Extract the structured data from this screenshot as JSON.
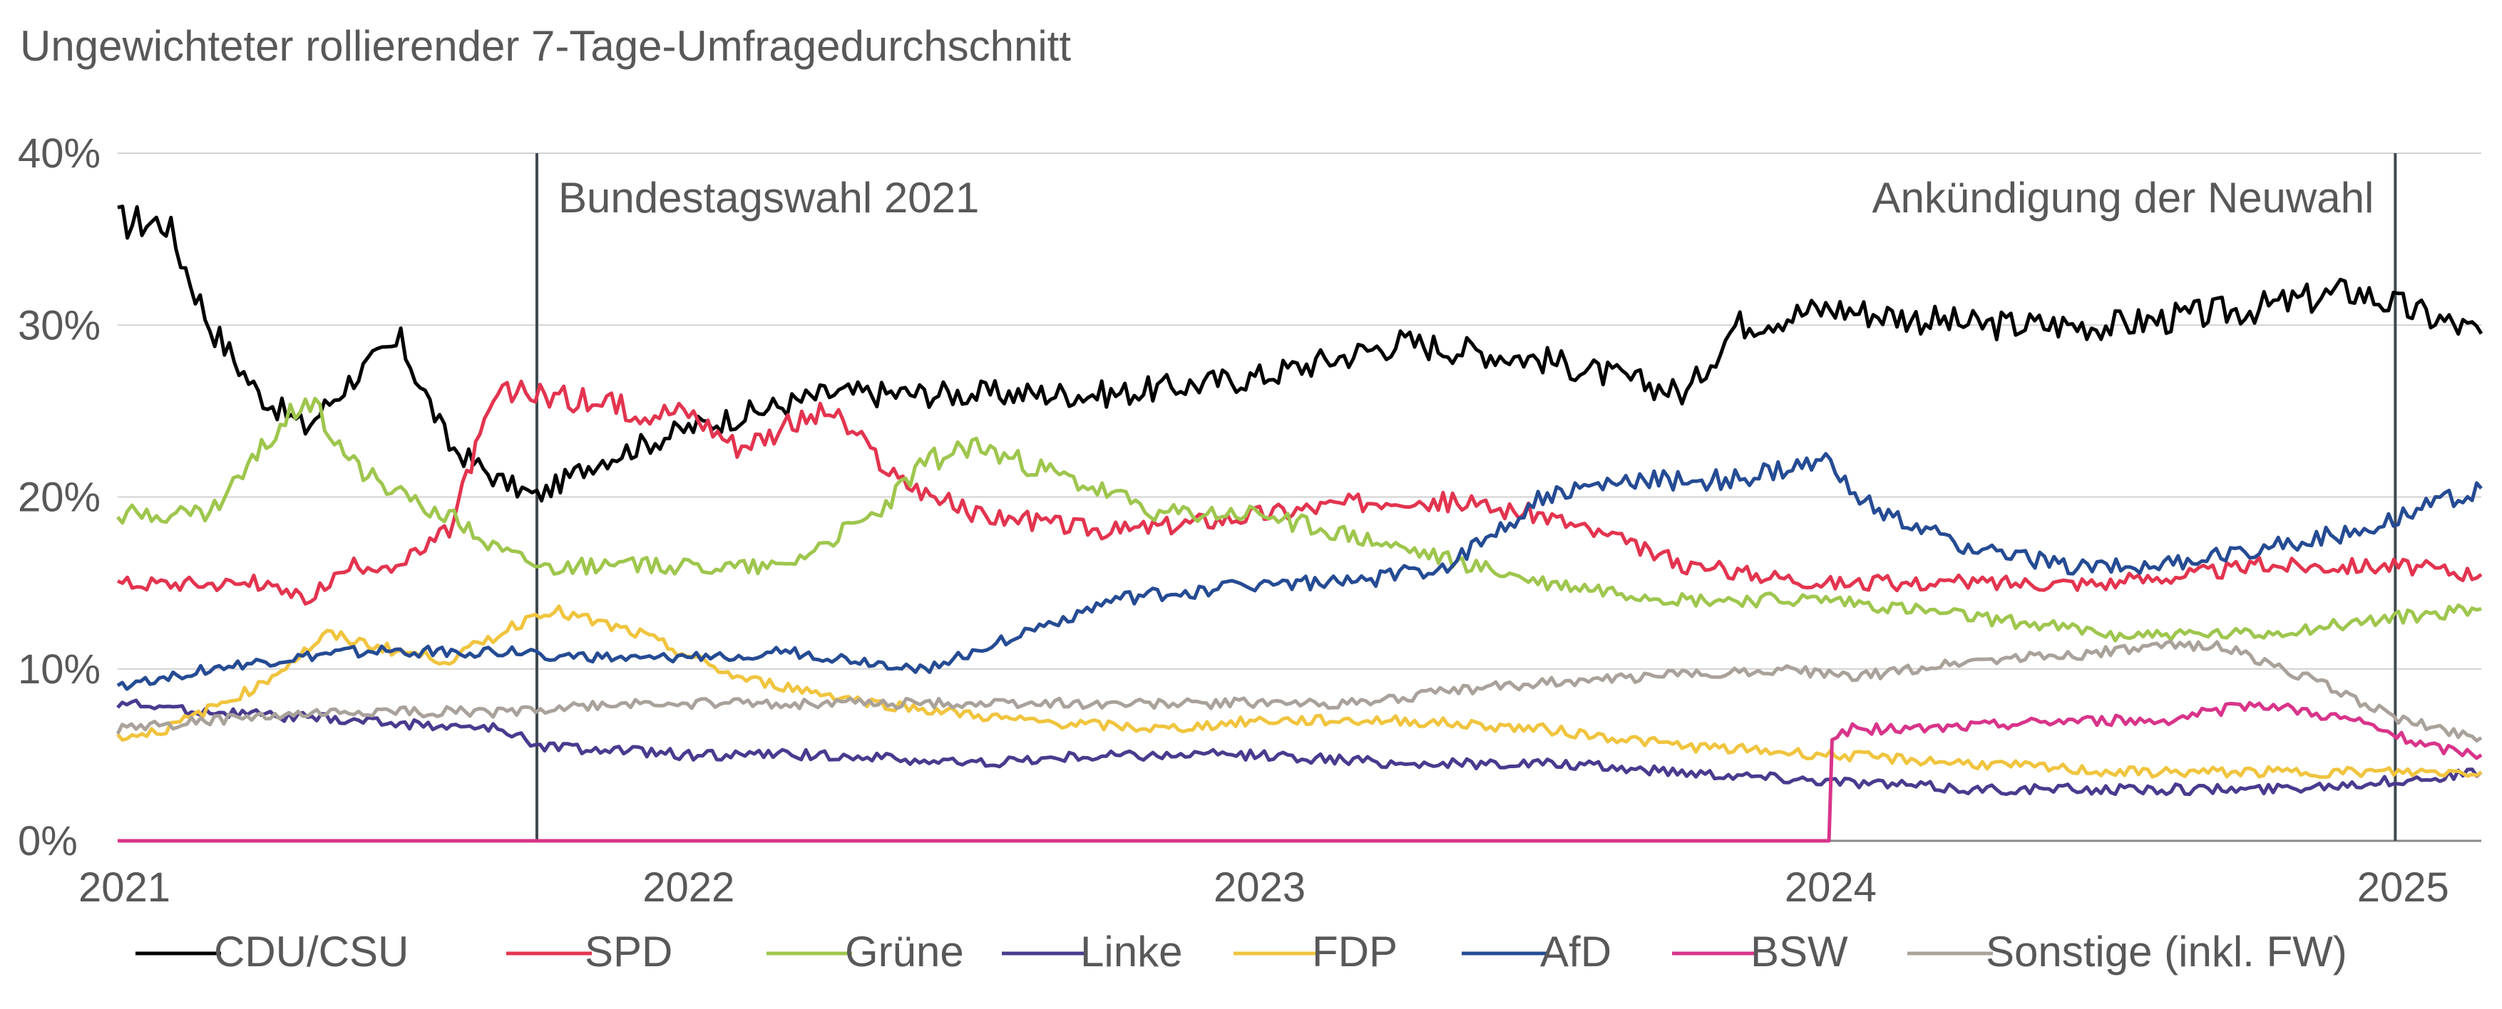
{
  "chart_data": {
    "type": "line",
    "title": "",
    "subtitle": "Ungewichteter rollierender 7-Tage-Umfragedurchschnitt",
    "xlabel": "",
    "ylabel": "",
    "x_ticks": [
      "2021",
      "2022",
      "2023",
      "2024",
      "2025"
    ],
    "y_ticks": [
      "0%",
      "10%",
      "20%",
      "30%",
      "40%"
    ],
    "xlim": [
      "2021-01-01",
      "2025-02-20"
    ],
    "ylim": [
      0,
      40
    ],
    "grid": "horizontal",
    "legend_position": "bottom",
    "annotations": [
      {
        "label": "Bundestagswahl 2021",
        "x": "2021-09-26"
      },
      {
        "label": "Ankündigung der Neuwahl",
        "x": "2024-12-27"
      }
    ],
    "series": [
      {
        "name": "CDU/CSU",
        "color": "#000000",
        "x": [
          "2021-01-01",
          "2021-02-01",
          "2021-03-01",
          "2021-04-01",
          "2021-05-01",
          "2021-06-01",
          "2021-07-01",
          "2021-08-01",
          "2021-09-01",
          "2021-09-26",
          "2021-11-01",
          "2022-01-01",
          "2022-04-01",
          "2022-07-01",
          "2022-10-01",
          "2023-01-01",
          "2023-04-01",
          "2023-07-01",
          "2023-10-01",
          "2023-11-01",
          "2024-01-01",
          "2024-04-01",
          "2024-07-01",
          "2024-10-01",
          "2024-12-01",
          "2025-01-01",
          "2025-02-20"
        ],
        "values": [
          36,
          36,
          30,
          26,
          24,
          27,
          29,
          23,
          21,
          20,
          22,
          24,
          26,
          26,
          26,
          27,
          29,
          28,
          26,
          30,
          31,
          30,
          30,
          31,
          32,
          31,
          29.5
        ]
      },
      {
        "name": "SPD",
        "color": "#e3344f",
        "x": [
          "2021-01-01",
          "2021-02-01",
          "2021-04-01",
          "2021-05-01",
          "2021-06-01",
          "2021-07-01",
          "2021-08-01",
          "2021-08-15",
          "2021-09-01",
          "2021-10-01",
          "2021-12-01",
          "2022-01-01",
          "2022-02-01",
          "2022-04-01",
          "2022-05-15",
          "2022-07-01",
          "2022-10-01",
          "2023-01-01",
          "2023-04-01",
          "2023-07-01",
          "2023-10-01",
          "2024-01-01",
          "2024-04-01",
          "2024-07-01",
          "2024-10-01",
          "2025-01-01",
          "2025-02-20"
        ],
        "values": [
          15,
          15,
          15,
          14,
          16,
          16,
          18,
          22,
          26,
          26,
          25,
          25,
          23,
          25,
          21,
          19,
          18,
          19,
          20,
          19,
          16,
          15,
          15,
          15,
          16,
          16,
          15.5
        ]
      },
      {
        "name": "Grüne",
        "color": "#9ec64d",
        "x": [
          "2021-01-01",
          "2021-02-01",
          "2021-03-01",
          "2021-04-15",
          "2021-05-01",
          "2021-06-01",
          "2021-07-01",
          "2021-08-01",
          "2021-09-01",
          "2021-10-01",
          "2022-01-01",
          "2022-03-01",
          "2022-05-01",
          "2022-06-01",
          "2022-07-01",
          "2022-09-01",
          "2022-11-01",
          "2023-01-01",
          "2023-04-01",
          "2023-07-01",
          "2023-10-01",
          "2024-01-01",
          "2024-04-01",
          "2024-07-01",
          "2024-10-01",
          "2025-01-01",
          "2025-02-20"
        ],
        "values": [
          19,
          19,
          19,
          24,
          26,
          22,
          20,
          19,
          17,
          16,
          16,
          16,
          19,
          22,
          23,
          21,
          19,
          19,
          17,
          15,
          14,
          14,
          13,
          12,
          12,
          13,
          13.5
        ]
      },
      {
        "name": "Linke",
        "color": "#4a3a8e",
        "x": [
          "2021-01-01",
          "2021-03-01",
          "2021-06-01",
          "2021-09-01",
          "2021-10-01",
          "2022-01-01",
          "2022-04-01",
          "2022-07-01",
          "2022-10-01",
          "2023-01-01",
          "2023-04-01",
          "2023-07-01",
          "2023-10-01",
          "2024-01-01",
          "2024-04-01",
          "2024-07-01",
          "2024-10-01",
          "2025-01-01",
          "2025-02-20"
        ],
        "values": [
          8,
          7.5,
          7,
          6.5,
          5.5,
          5,
          5,
          4.5,
          5,
          5,
          4.5,
          4.5,
          4,
          3.5,
          3,
          3,
          3,
          3.5,
          4
        ]
      },
      {
        "name": "FDP",
        "color": "#f0c43e",
        "x": [
          "2021-01-01",
          "2021-02-01",
          "2021-04-01",
          "2021-05-15",
          "2021-07-01",
          "2021-08-01",
          "2021-09-01",
          "2021-10-01",
          "2021-12-01",
          "2022-02-01",
          "2022-05-01",
          "2022-08-01",
          "2022-11-01",
          "2023-01-01",
          "2023-04-01",
          "2023-07-01",
          "2023-10-01",
          "2024-01-01",
          "2024-04-01",
          "2024-07-01",
          "2024-10-01",
          "2025-01-01",
          "2025-02-20"
        ],
        "values": [
          6,
          6.5,
          9,
          12,
          11,
          10.5,
          12,
          13.5,
          12,
          9.5,
          8,
          7,
          6.5,
          7,
          7,
          6.5,
          5.5,
          5,
          4.5,
          4,
          4,
          4,
          4
        ]
      },
      {
        "name": "AfD",
        "color": "#254b93",
        "x": [
          "2021-01-01",
          "2021-03-01",
          "2021-06-01",
          "2021-09-01",
          "2021-12-01",
          "2022-03-01",
          "2022-06-01",
          "2022-08-01",
          "2022-10-01",
          "2023-01-01",
          "2023-03-01",
          "2023-05-01",
          "2023-06-01",
          "2023-07-01",
          "2023-09-01",
          "2023-11-01",
          "2024-01-01",
          "2024-02-01",
          "2024-04-01",
          "2024-06-01",
          "2024-08-01",
          "2024-10-01",
          "2024-12-01",
          "2025-01-01",
          "2025-02-20"
        ],
        "values": [
          9,
          10,
          11,
          11,
          10.5,
          11,
          10,
          12,
          14,
          15,
          15,
          16,
          18,
          20,
          21,
          21,
          22,
          19,
          17,
          16,
          16,
          17,
          18,
          19,
          20.5
        ]
      },
      {
        "name": "BSW",
        "color": "#d8348a",
        "x": [
          "2021-01-01",
          "2023-12-31",
          "2024-01-02",
          "2024-01-15",
          "2024-03-01",
          "2024-06-01",
          "2024-08-01",
          "2024-10-01",
          "2024-12-01",
          "2025-01-15",
          "2025-02-20"
        ],
        "values": [
          0,
          0,
          6,
          6.5,
          6.5,
          7,
          7,
          8,
          7,
          5.5,
          5
        ]
      },
      {
        "name": "Sonstige (inkl. FW)",
        "color": "#a9a29a",
        "x": [
          "2021-01-01",
          "2021-03-01",
          "2021-06-01",
          "2021-09-01",
          "2021-12-01",
          "2022-03-01",
          "2022-06-01",
          "2022-09-01",
          "2022-12-01",
          "2023-03-01",
          "2023-06-01",
          "2023-09-01",
          "2023-12-01",
          "2024-01-15",
          "2024-04-01",
          "2024-07-01",
          "2024-09-01",
          "2024-11-01",
          "2025-01-01",
          "2025-02-20"
        ],
        "values": [
          6.5,
          7,
          7.5,
          7.5,
          8,
          8,
          8,
          8,
          8,
          8,
          9,
          9.5,
          10,
          9.5,
          10.5,
          11,
          11.5,
          9.5,
          7,
          6
        ]
      }
    ]
  }
}
